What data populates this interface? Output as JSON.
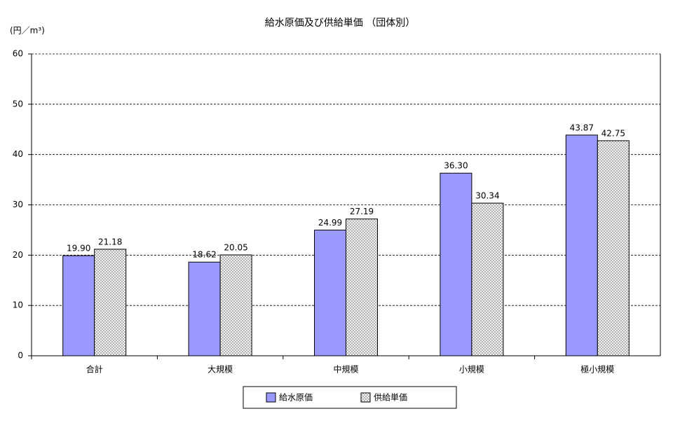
{
  "chart_data": {
    "type": "bar",
    "title": "給水原価及び供給単価 （団体別）",
    "y_label": "(円／m³)",
    "categories": [
      "合計",
      "大規模",
      "中規模",
      "小規模",
      "極小規模"
    ],
    "series": [
      {
        "name": "給水原価",
        "color": "#9999ff",
        "values": [
          19.9,
          18.62,
          24.99,
          36.3,
          43.87
        ],
        "value_labels": [
          "19.90",
          "18.62",
          "24.99",
          "36.30",
          "43.87"
        ]
      },
      {
        "name": "供給単価",
        "color": "#ffffff",
        "fill_pattern": "crosshatch",
        "values": [
          21.18,
          20.05,
          27.19,
          30.34,
          42.75
        ],
        "value_labels": [
          "21.18",
          "20.05",
          "27.19",
          "30.34",
          "42.75"
        ]
      }
    ],
    "ylim": [
      0,
      60
    ],
    "yticks": [
      0,
      10,
      20,
      30,
      40,
      50,
      60
    ],
    "grid": true,
    "legend": "bottom"
  }
}
